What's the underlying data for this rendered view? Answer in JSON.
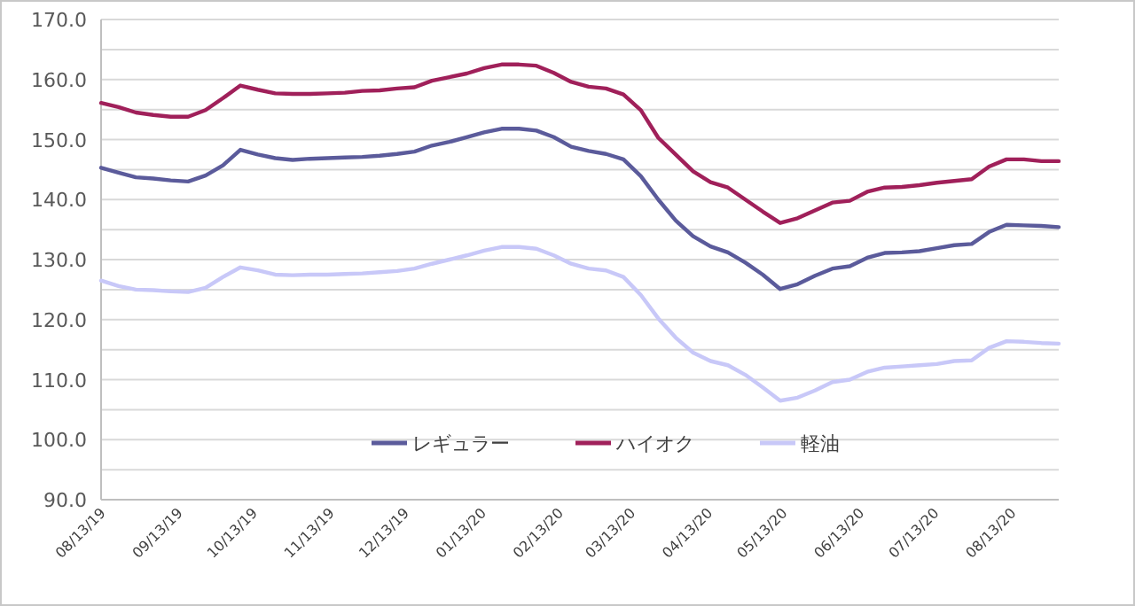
{
  "chart_data": {
    "type": "line",
    "legend": "bottom",
    "grid": "y",
    "marker": "none",
    "line_style": "solid",
    "x": [
      "2019-08-13",
      "2019-08-20",
      "2019-08-27",
      "2019-09-03",
      "2019-09-10",
      "2019-09-17",
      "2019-09-24",
      "2019-10-01",
      "2019-10-08",
      "2019-10-15",
      "2019-10-22",
      "2019-10-29",
      "2019-11-05",
      "2019-11-12",
      "2019-11-19",
      "2019-11-26",
      "2019-12-03",
      "2019-12-10",
      "2019-12-17",
      "2019-12-24",
      "2019-12-31",
      "2020-01-07",
      "2020-01-14",
      "2020-01-21",
      "2020-01-28",
      "2020-02-04",
      "2020-02-11",
      "2020-02-18",
      "2020-02-25",
      "2020-03-03",
      "2020-03-10",
      "2020-03-17",
      "2020-03-24",
      "2020-03-31",
      "2020-04-07",
      "2020-04-14",
      "2020-04-21",
      "2020-04-28",
      "2020-05-05",
      "2020-05-12",
      "2020-05-19",
      "2020-05-26",
      "2020-06-02",
      "2020-06-09",
      "2020-06-16",
      "2020-06-23",
      "2020-06-30",
      "2020-07-07",
      "2020-07-14",
      "2020-07-21",
      "2020-07-28",
      "2020-08-04",
      "2020-08-11",
      "2020-08-18",
      "2020-08-25",
      "2020-09-01"
    ],
    "series": [
      {
        "name": "レギュラー",
        "color": "#5b5b9b",
        "values": [
          145.3,
          144.5,
          143.7,
          143.5,
          143.2,
          143.0,
          144.0,
          145.7,
          148.3,
          147.5,
          146.9,
          146.6,
          146.8,
          146.9,
          147.0,
          147.1,
          147.3,
          147.6,
          148.0,
          149.0,
          149.6,
          150.4,
          151.2,
          151.8,
          151.8,
          151.5,
          150.4,
          148.8,
          148.1,
          147.6,
          146.7,
          143.9,
          140.0,
          136.5,
          133.9,
          132.2,
          131.2,
          129.5,
          127.5,
          125.1,
          125.9,
          127.3,
          128.5,
          128.9,
          130.3,
          131.1,
          131.2,
          131.4,
          131.9,
          132.4,
          132.6,
          134.6,
          135.8,
          135.7,
          135.6,
          135.4
        ]
      },
      {
        "name": "ハイオク",
        "color": "#a0205a",
        "values": [
          156.1,
          155.4,
          154.5,
          154.1,
          153.8,
          153.8,
          154.9,
          156.9,
          159.0,
          158.3,
          157.7,
          157.6,
          157.6,
          157.7,
          157.8,
          158.1,
          158.2,
          158.5,
          158.7,
          159.8,
          160.4,
          161.0,
          161.9,
          162.5,
          162.5,
          162.3,
          161.1,
          159.6,
          158.8,
          158.5,
          157.5,
          154.9,
          150.3,
          147.5,
          144.7,
          142.9,
          142.0,
          140.0,
          138.0,
          136.1,
          136.9,
          138.2,
          139.5,
          139.8,
          141.3,
          142.0,
          142.1,
          142.4,
          142.8,
          143.1,
          143.4,
          145.5,
          146.7,
          146.7,
          146.4,
          146.4
        ]
      },
      {
        "name": "軽油",
        "color": "#c8c8f8",
        "values": [
          126.5,
          125.6,
          125.0,
          124.9,
          124.7,
          124.6,
          125.3,
          127.1,
          128.7,
          128.2,
          127.5,
          127.4,
          127.5,
          127.5,
          127.6,
          127.7,
          127.9,
          128.1,
          128.5,
          129.3,
          130.0,
          130.7,
          131.5,
          132.1,
          132.1,
          131.8,
          130.7,
          129.3,
          128.5,
          128.2,
          127.1,
          124.1,
          120.2,
          117.0,
          114.5,
          113.1,
          112.4,
          110.8,
          108.7,
          106.5,
          107.0,
          108.2,
          109.6,
          110.0,
          111.3,
          112.0,
          112.2,
          112.4,
          112.6,
          113.1,
          113.2,
          115.3,
          116.4,
          116.3,
          116.1,
          116.0
        ]
      }
    ],
    "xlim": [
      "2019-08-13",
      "2020-09-01"
    ],
    "xticks": [
      {
        "value": "2019-08-13",
        "label": "08/13/19"
      },
      {
        "value": "2019-09-13",
        "label": "09/13/19"
      },
      {
        "value": "2019-10-13",
        "label": "10/13/19"
      },
      {
        "value": "2019-11-13",
        "label": "11/13/19"
      },
      {
        "value": "2019-12-13",
        "label": "12/13/19"
      },
      {
        "value": "2020-01-13",
        "label": "01/13/20"
      },
      {
        "value": "2020-02-13",
        "label": "02/13/20"
      },
      {
        "value": "2020-03-13",
        "label": "03/13/20"
      },
      {
        "value": "2020-04-13",
        "label": "04/13/20"
      },
      {
        "value": "2020-05-13",
        "label": "05/13/20"
      },
      {
        "value": "2020-06-13",
        "label": "06/13/20"
      },
      {
        "value": "2020-07-13",
        "label": "07/13/20"
      },
      {
        "value": "2020-08-13",
        "label": "08/13/20"
      }
    ],
    "ylim": [
      90,
      170
    ],
    "yticks": [
      {
        "value": 90,
        "label": "90.0"
      },
      {
        "value": 95,
        "label": null
      },
      {
        "value": 100,
        "label": "100.0"
      },
      {
        "value": 105,
        "label": null
      },
      {
        "value": 110,
        "label": "110.0"
      },
      {
        "value": 115,
        "label": null
      },
      {
        "value": 120,
        "label": "120.0"
      },
      {
        "value": 125,
        "label": null
      },
      {
        "value": 130,
        "label": "130.0"
      },
      {
        "value": 135,
        "label": null
      },
      {
        "value": 140,
        "label": "140.0"
      },
      {
        "value": 145,
        "label": null
      },
      {
        "value": 150,
        "label": "150.0"
      },
      {
        "value": 155,
        "label": null
      },
      {
        "value": 160,
        "label": "160.0"
      },
      {
        "value": 165,
        "label": null
      },
      {
        "value": 170,
        "label": "170.0"
      }
    ]
  }
}
